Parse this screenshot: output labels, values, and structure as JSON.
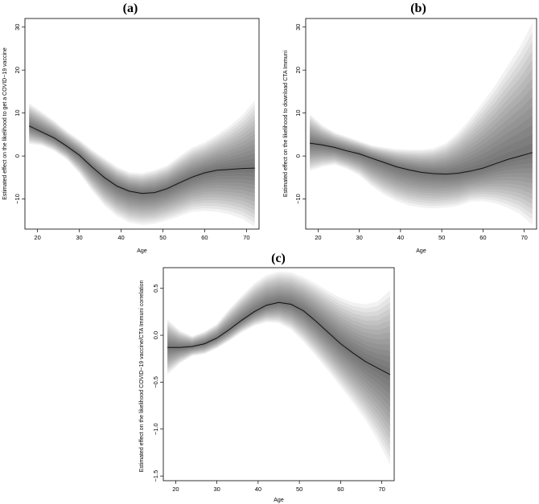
{
  "chart_data": [
    {
      "type": "line",
      "panel_label": "(a)",
      "xlabel": "Age",
      "ylabel": "Estimated effect on the likelihood to get a COVID−19 vaccine",
      "xlim": [
        17,
        73
      ],
      "ylim": [
        -17,
        32
      ],
      "xticks": [
        20,
        30,
        40,
        50,
        60,
        70
      ],
      "yticks": [
        -10,
        0,
        10,
        20,
        30
      ],
      "band_style": "graded grey confidence band",
      "series": [
        {
          "x": [
            18,
            21,
            24,
            27,
            30,
            33,
            36,
            39,
            42,
            45,
            48,
            51,
            54,
            57,
            60,
            63,
            66,
            69,
            72
          ],
          "y": [
            7,
            5.6,
            4.2,
            2.3,
            0.2,
            -2.5,
            -5,
            -7,
            -8.2,
            -8.7,
            -8.5,
            -7.6,
            -6.2,
            -4.9,
            -3.9,
            -3.3,
            -3.1,
            -2.9,
            -2.8
          ],
          "lower": [
            2.8,
            2.5,
            1.2,
            -0.8,
            -4,
            -8,
            -11.5,
            -14,
            -15.5,
            -16,
            -15.8,
            -15,
            -14,
            -13,
            -12.8,
            -13,
            -13.6,
            -14.6,
            -16.5
          ],
          "upper": [
            12.3,
            10.3,
            8.2,
            5.8,
            3.8,
            1.5,
            -0.5,
            -2.5,
            -3.8,
            -4,
            -3.3,
            -2.2,
            0,
            2,
            3.2,
            5,
            7,
            9.5,
            13
          ]
        }
      ]
    },
    {
      "type": "line",
      "panel_label": "(b)",
      "xlabel": "Age",
      "ylabel": "Estimated effect on the likelihood to download CTA Immuni",
      "xlim": [
        17,
        73
      ],
      "ylim": [
        -17,
        32
      ],
      "xticks": [
        20,
        30,
        40,
        50,
        60,
        70
      ],
      "yticks": [
        -10,
        0,
        10,
        20,
        30
      ],
      "band_style": "graded grey confidence band",
      "series": [
        {
          "x": [
            18,
            21,
            24,
            27,
            30,
            33,
            36,
            39,
            42,
            45,
            48,
            51,
            54,
            57,
            60,
            63,
            66,
            69,
            72
          ],
          "y": [
            3,
            2.6,
            2,
            1.2,
            0.5,
            -0.5,
            -1.5,
            -2.5,
            -3.2,
            -3.8,
            -4.1,
            -4.2,
            -4,
            -3.5,
            -2.8,
            -1.8,
            -0.8,
            0,
            0.8
          ],
          "lower": [
            -3.5,
            -2.5,
            -2,
            -3,
            -4.5,
            -7,
            -9,
            -10.5,
            -11.5,
            -12,
            -12.2,
            -12,
            -11.6,
            -10.6,
            -10.5,
            -11,
            -12,
            -13.5,
            -16
          ],
          "upper": [
            9.8,
            7.2,
            5.5,
            4.5,
            3.5,
            2.5,
            2,
            1.6,
            1.5,
            1.5,
            1.8,
            3,
            5.5,
            8.8,
            12.5,
            16.5,
            21,
            25.5,
            31
          ]
        }
      ]
    },
    {
      "type": "line",
      "panel_label": "(c)",
      "xlabel": "Age",
      "ylabel": "Estimated effect on the likelihood COVID−19 vaccine/CTA Immuni correlation",
      "xlim": [
        17,
        73
      ],
      "ylim": [
        -1.55,
        0.72
      ],
      "xticks": [
        20,
        30,
        40,
        50,
        60,
        70
      ],
      "yticks": [
        -1.5,
        -1.0,
        -0.5,
        0.0,
        0.5
      ],
      "ytick_labels": [
        "−1.5",
        "−1.0",
        "−0.5",
        "0.0",
        "0.5"
      ],
      "band_style": "graded grey confidence band",
      "series": [
        {
          "x": [
            18,
            21,
            24,
            27,
            30,
            33,
            36,
            39,
            42,
            45,
            48,
            51,
            54,
            57,
            60,
            63,
            66,
            69,
            72
          ],
          "y": [
            -0.13,
            -0.13,
            -0.12,
            -0.09,
            -0.03,
            0.06,
            0.16,
            0.25,
            0.32,
            0.35,
            0.33,
            0.26,
            0.15,
            0.03,
            -0.09,
            -0.19,
            -0.28,
            -0.35,
            -0.42
          ],
          "lower": [
            -0.42,
            -0.3,
            -0.22,
            -0.2,
            -0.14,
            -0.06,
            0.03,
            0.1,
            0.14,
            0.13,
            0.06,
            -0.07,
            -0.22,
            -0.38,
            -0.55,
            -0.72,
            -0.9,
            -1.12,
            -1.38
          ],
          "upper": [
            0.17,
            0.05,
            -0.01,
            0.04,
            0.12,
            0.28,
            0.42,
            0.55,
            0.64,
            0.68,
            0.67,
            0.62,
            0.55,
            0.47,
            0.4,
            0.35,
            0.33,
            0.36,
            0.48
          ]
        }
      ]
    }
  ]
}
